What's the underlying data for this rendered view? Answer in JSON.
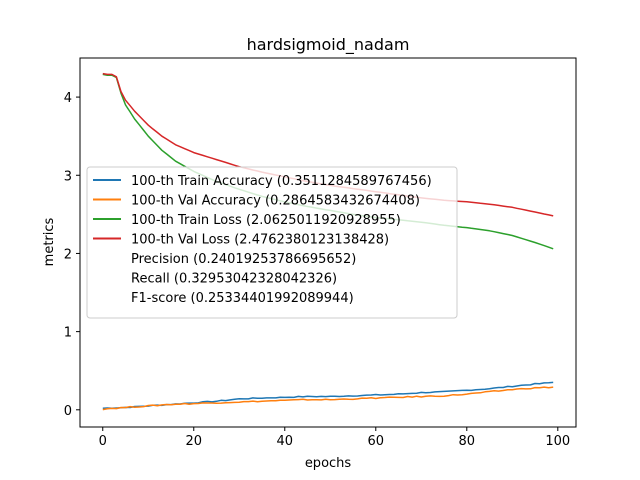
{
  "chart_data": {
    "type": "line",
    "title": "hardsigmoid_nadam",
    "xlabel": "epochs",
    "ylabel": "metrics",
    "xlim": [
      -5,
      104
    ],
    "ylim": [
      -0.22,
      4.5
    ],
    "xticks": [
      0,
      20,
      40,
      60,
      80,
      100
    ],
    "yticks": [
      0,
      1,
      2,
      3,
      4
    ],
    "grid": false,
    "legend_position": "center-left",
    "series": [
      {
        "name": "100-th Train Accuracy (0.3511284589767456)",
        "color": "#1f77b4",
        "keypoints": [
          [
            0,
            0.02
          ],
          [
            5,
            0.03
          ],
          [
            10,
            0.05
          ],
          [
            15,
            0.07
          ],
          [
            20,
            0.09
          ],
          [
            25,
            0.11
          ],
          [
            30,
            0.14
          ],
          [
            35,
            0.15
          ],
          [
            40,
            0.16
          ],
          [
            45,
            0.17
          ],
          [
            50,
            0.17
          ],
          [
            55,
            0.18
          ],
          [
            60,
            0.19
          ],
          [
            65,
            0.2
          ],
          [
            70,
            0.22
          ],
          [
            75,
            0.23
          ],
          [
            80,
            0.25
          ],
          [
            85,
            0.27
          ],
          [
            90,
            0.3
          ],
          [
            95,
            0.33
          ],
          [
            99,
            0.35
          ]
        ]
      },
      {
        "name": "100-th Val Accuracy (0.2864583432674408)",
        "color": "#ff7f0e",
        "keypoints": [
          [
            0,
            0.01
          ],
          [
            5,
            0.03
          ],
          [
            10,
            0.05
          ],
          [
            15,
            0.07
          ],
          [
            20,
            0.08
          ],
          [
            25,
            0.09
          ],
          [
            30,
            0.1
          ],
          [
            35,
            0.11
          ],
          [
            40,
            0.12
          ],
          [
            45,
            0.13
          ],
          [
            50,
            0.13
          ],
          [
            55,
            0.14
          ],
          [
            60,
            0.15
          ],
          [
            65,
            0.16
          ],
          [
            70,
            0.17
          ],
          [
            75,
            0.18
          ],
          [
            80,
            0.2
          ],
          [
            85,
            0.23
          ],
          [
            90,
            0.26
          ],
          [
            95,
            0.28
          ],
          [
            99,
            0.29
          ]
        ]
      },
      {
        "name": "100-th Train Loss (2.0625011920928955)",
        "color": "#2ca02c",
        "keypoints": [
          [
            0,
            4.29
          ],
          [
            1,
            4.28
          ],
          [
            2,
            4.28
          ],
          [
            3,
            4.25
          ],
          [
            4,
            4.05
          ],
          [
            5,
            3.9
          ],
          [
            7,
            3.72
          ],
          [
            10,
            3.5
          ],
          [
            13,
            3.32
          ],
          [
            16,
            3.18
          ],
          [
            20,
            3.05
          ],
          [
            25,
            2.92
          ],
          [
            30,
            2.82
          ],
          [
            35,
            2.73
          ],
          [
            40,
            2.66
          ],
          [
            45,
            2.6
          ],
          [
            50,
            2.55
          ],
          [
            55,
            2.5
          ],
          [
            60,
            2.46
          ],
          [
            65,
            2.43
          ],
          [
            70,
            2.4
          ],
          [
            75,
            2.36
          ],
          [
            80,
            2.33
          ],
          [
            85,
            2.29
          ],
          [
            90,
            2.23
          ],
          [
            95,
            2.14
          ],
          [
            99,
            2.06
          ]
        ]
      },
      {
        "name": "100-th Val Loss (2.4762380123138428)",
        "color": "#d62728",
        "keypoints": [
          [
            0,
            4.3
          ],
          [
            1,
            4.29
          ],
          [
            2,
            4.29
          ],
          [
            3,
            4.26
          ],
          [
            4,
            4.07
          ],
          [
            5,
            3.96
          ],
          [
            7,
            3.82
          ],
          [
            10,
            3.64
          ],
          [
            13,
            3.5
          ],
          [
            16,
            3.39
          ],
          [
            20,
            3.29
          ],
          [
            25,
            3.2
          ],
          [
            30,
            3.11
          ],
          [
            35,
            3.04
          ],
          [
            40,
            2.98
          ],
          [
            45,
            2.92
          ],
          [
            50,
            2.87
          ],
          [
            55,
            2.83
          ],
          [
            60,
            2.79
          ],
          [
            65,
            2.75
          ],
          [
            70,
            2.71
          ],
          [
            75,
            2.68
          ],
          [
            80,
            2.66
          ],
          [
            85,
            2.63
          ],
          [
            90,
            2.59
          ],
          [
            95,
            2.53
          ],
          [
            99,
            2.48
          ]
        ]
      }
    ],
    "legend_extra": [
      "Precision (0.24019253786695652)",
      "Recall (0.32953042328042326)",
      "F1-score (0.25334401992089944)"
    ]
  }
}
